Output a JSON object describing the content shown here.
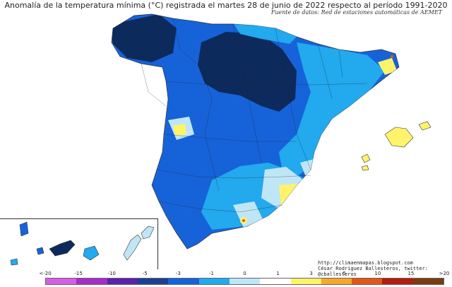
{
  "title": "Anomalía de la temperatura mínima (°C) registrada el martes 28 de junio de 2022 respecto al período 1991-2020",
  "subtitle": "Fuente de datos: Red de estaciones automáticas de AEMET",
  "credits": {
    "line1": "http://climaenmapas.blogspot.com",
    "line2": "César Rodríguez Ballesteros, twitter: @cballesteros"
  },
  "legend": {
    "ticks": [
      "<-20",
      "-15",
      "-10",
      "-5",
      "-3",
      "-1",
      "0",
      "1",
      "3",
      "5",
      "10",
      "15",
      ">20"
    ],
    "colors": [
      "#d65ee6",
      "#a32fc8",
      "#5b21a8",
      "#1b3f95",
      "#1663d9",
      "#22a9ee",
      "#bfe6f7",
      "#ffffff",
      "#fff36a",
      "#f6a82a",
      "#e0571b",
      "#b51c10",
      "#7a3b10"
    ]
  },
  "palette": {
    "deep_navy": "#0d2a5c",
    "blue": "#1663d9",
    "light_blue": "#22a9ee",
    "pale_blue": "#bfe6f7",
    "yellow": "#fff36a"
  }
}
